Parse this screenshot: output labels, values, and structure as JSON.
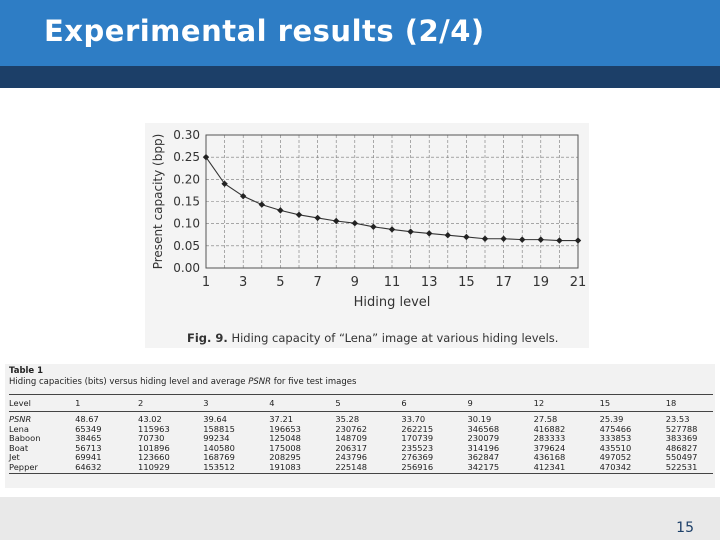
{
  "slide": {
    "title": "Experimental results (2/4)",
    "page_number": "15",
    "colors": {
      "header": "#2e7dc5",
      "header_bar": "#1c3f68",
      "footer": "#e9e9e9"
    }
  },
  "figure": {
    "caption_label": "Fig. 9.",
    "caption_text": "Hiding capacity of “Lena” image at various hiding levels."
  },
  "chart_data": {
    "type": "line",
    "xlabel": "Hiding level",
    "ylabel": "Present capacity (bpp)",
    "xlim": [
      1,
      21
    ],
    "ylim": [
      0,
      0.3
    ],
    "x_ticks": [
      "1",
      "3",
      "5",
      "7",
      "9",
      "11",
      "13",
      "15",
      "17",
      "19",
      "21"
    ],
    "y_ticks": [
      "0.00",
      "0.05",
      "0.10",
      "0.15",
      "0.20",
      "0.25",
      "0.30"
    ],
    "grid": true,
    "series": [
      {
        "x": [
          1,
          2,
          3,
          4,
          5,
          6,
          7,
          8,
          9,
          10,
          11,
          12,
          13,
          14,
          15,
          16,
          17,
          18,
          19,
          20,
          21
        ],
        "values": [
          0.25,
          0.19,
          0.162,
          0.143,
          0.13,
          0.12,
          0.113,
          0.106,
          0.101,
          0.093,
          0.087,
          0.082,
          0.078,
          0.074,
          0.07,
          0.066,
          0.066,
          0.064,
          0.064,
          0.062,
          0.062
        ]
      }
    ]
  },
  "table": {
    "number": "Table 1",
    "caption_prefix": "Hiding capacities (bits) versus hiding level and average ",
    "caption_psnr": "PSNR",
    "caption_suffix": " for five test images",
    "headers": [
      "Level",
      "1",
      "2",
      "3",
      "4",
      "5",
      "6",
      "9",
      "12",
      "15",
      "18"
    ],
    "rows": [
      [
        "PSNR",
        "48.67",
        "43.02",
        "39.64",
        "37.21",
        "35.28",
        "33.70",
        "30.19",
        "27.58",
        "25.39",
        "23.53"
      ],
      [
        "Lena",
        "65349",
        "115963",
        "158815",
        "196653",
        "230762",
        "262215",
        "346568",
        "416882",
        "475466",
        "527788"
      ],
      [
        "Baboon",
        "38465",
        "70730",
        "99234",
        "125048",
        "148709",
        "170739",
        "230079",
        "283333",
        "333853",
        "383369"
      ],
      [
        "Boat",
        "56713",
        "101896",
        "140580",
        "175008",
        "206317",
        "235523",
        "314196",
        "379624",
        "435510",
        "486827"
      ],
      [
        "Jet",
        "69941",
        "123660",
        "168769",
        "208295",
        "243796",
        "276369",
        "362847",
        "436168",
        "497052",
        "550497"
      ],
      [
        "Pepper",
        "64632",
        "110929",
        "153512",
        "191083",
        "225148",
        "256916",
        "342175",
        "412341",
        "470342",
        "522531"
      ]
    ]
  }
}
